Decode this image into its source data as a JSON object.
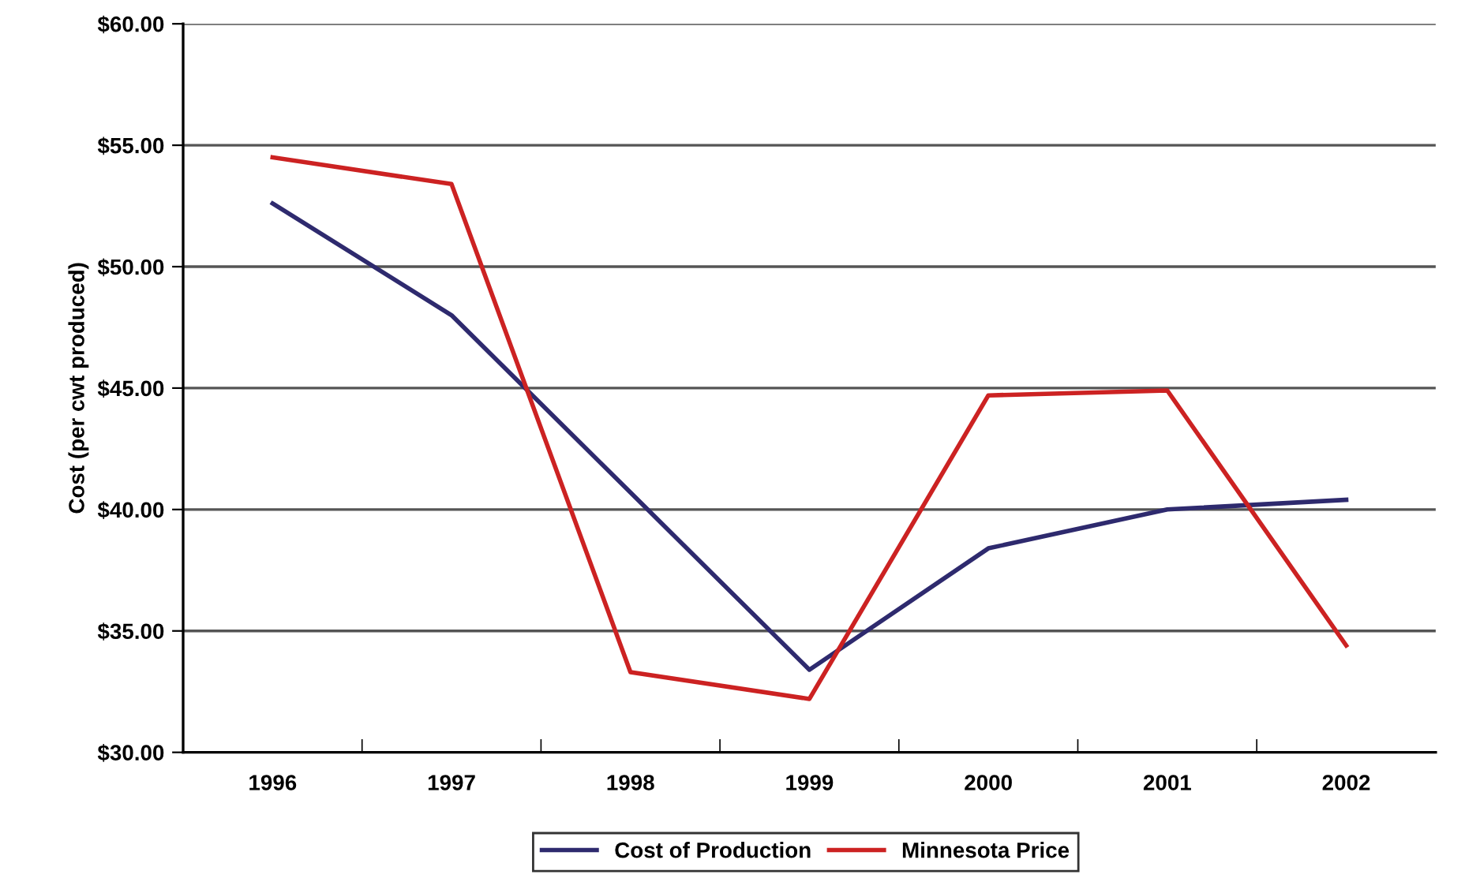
{
  "chart_data": {
    "type": "line",
    "ylabel": "Cost (per cwt produced)",
    "categories": [
      "1996",
      "1997",
      "1998",
      "1999",
      "2000",
      "2001",
      "2002"
    ],
    "series": [
      {
        "name": "Cost of Production",
        "color": "#2e2a6e",
        "values": [
          52.6,
          48.0,
          40.7,
          33.4,
          38.4,
          40.0,
          40.4
        ]
      },
      {
        "name": "Minnesota Price",
        "color": "#cc2222",
        "values": [
          54.5,
          53.4,
          33.3,
          32.2,
          44.7,
          44.9,
          34.4
        ]
      }
    ],
    "ylim": [
      30,
      60
    ],
    "yticks": [
      {
        "value": 30,
        "label": "$30.00"
      },
      {
        "value": 35,
        "label": "$35.00"
      },
      {
        "value": 40,
        "label": "$40.00"
      },
      {
        "value": 45,
        "label": "$45.00"
      },
      {
        "value": 50,
        "label": "$50.00"
      },
      {
        "value": 55,
        "label": "$55.00"
      },
      {
        "value": 60,
        "label": "$60.00"
      }
    ],
    "grid": "y",
    "legend": "bottom",
    "marker": "none",
    "line_style": "solid"
  }
}
